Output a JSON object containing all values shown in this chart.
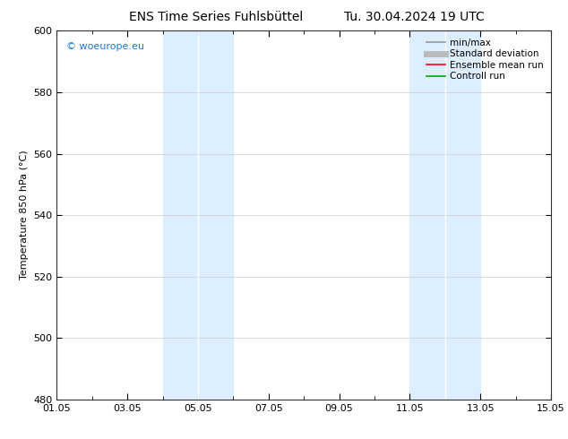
{
  "title_left": "ENS Time Series Fuhlsbüttel",
  "title_right": "Tu. 30.04.2024 19 UTC",
  "ylabel": "Temperature 850 hPa (°C)",
  "ylim": [
    480,
    600
  ],
  "yticks": [
    480,
    500,
    520,
    540,
    560,
    580,
    600
  ],
  "xlim_start": 0,
  "xlim_end": 14,
  "xtick_labels": [
    "01.05",
    "03.05",
    "05.05",
    "07.05",
    "09.05",
    "11.05",
    "13.05",
    "15.05"
  ],
  "xtick_positions": [
    0,
    2,
    4,
    6,
    8,
    10,
    12,
    14
  ],
  "shaded_bands": [
    {
      "x_start": 3.0,
      "x_end": 3.5
    },
    {
      "x_start": 3.5,
      "x_end": 5.0
    },
    {
      "x_start": 10.0,
      "x_end": 10.5
    },
    {
      "x_start": 10.5,
      "x_end": 12.0
    }
  ],
  "band_color": "#ddeeff",
  "background_color": "#ffffff",
  "watermark": "© woeurope.eu",
  "watermark_color": "#2277cc",
  "legend_items": [
    {
      "label": "min/max",
      "color": "#999999",
      "lw": 1.2
    },
    {
      "label": "Standard deviation",
      "color": "#bbbbbb",
      "lw": 5
    },
    {
      "label": "Ensemble mean run",
      "color": "#ff0000",
      "lw": 1.2
    },
    {
      "label": "Controll run",
      "color": "#00aa00",
      "lw": 1.2
    }
  ],
  "grid_color": "#cccccc",
  "title_fontsize": 10,
  "axis_fontsize": 8,
  "tick_fontsize": 8,
  "legend_fontsize": 7.5
}
